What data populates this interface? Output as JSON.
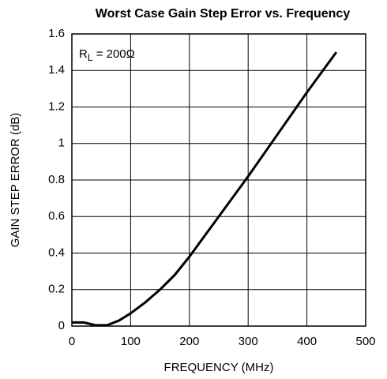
{
  "chart_data": {
    "type": "line",
    "title": "Worst Case Gain Step Error vs. Frequency",
    "xlabel": "FREQUENCY (MHz)",
    "ylabel": "GAIN STEP ERROR (dB)",
    "annotation": {
      "main": "R",
      "sub": "L",
      "rest": " = 200Ω"
    },
    "x": [
      0,
      20,
      40,
      60,
      80,
      100,
      125,
      150,
      175,
      200,
      250,
      300,
      350,
      400,
      450
    ],
    "series": [
      {
        "name": "RL = 200Ω",
        "color": "#000000",
        "values": [
          0.02,
          0.02,
          0.005,
          0.005,
          0.03,
          0.07,
          0.13,
          0.2,
          0.28,
          0.38,
          0.6,
          0.82,
          1.05,
          1.28,
          1.5
        ]
      }
    ],
    "xlim": [
      0,
      500
    ],
    "xticks": [
      0,
      100,
      200,
      300,
      400,
      500
    ],
    "ylim": [
      0,
      1.6
    ],
    "yticks": [
      0,
      0.2,
      0.4,
      0.6,
      0.8,
      1,
      1.2,
      1.4,
      1.6
    ],
    "grid": true
  }
}
